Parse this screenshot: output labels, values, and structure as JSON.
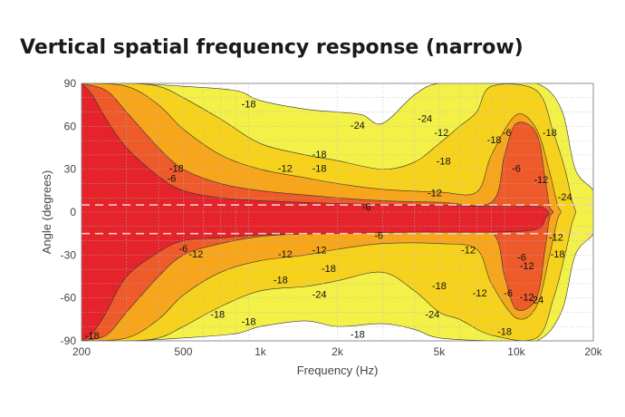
{
  "title": "Vertical spatial frequency response (narrow)",
  "colors": {
    "level_0": "#e5232b",
    "level_6": "#ee5a2a",
    "level_12": "#f7a51b",
    "level_18": "#f6d21c",
    "level_24": "#f3f048",
    "background": "#ffffff",
    "guide": "#f6c9c9"
  },
  "chart_data": {
    "type": "heatmap",
    "title": "Vertical spatial frequency response (narrow)",
    "xlabel": "Frequency (Hz)",
    "ylabel": "Angle (degrees)",
    "x_scale": "log",
    "xlim": [
      200,
      20000
    ],
    "ylim": [
      -90,
      90
    ],
    "x_ticks": [
      {
        "value": 200,
        "label": "200"
      },
      {
        "value": 500,
        "label": "500"
      },
      {
        "value": 1000,
        "label": "1k"
      },
      {
        "value": 2000,
        "label": "2k"
      },
      {
        "value": 5000,
        "label": "5k"
      },
      {
        "value": 10000,
        "label": "10k"
      },
      {
        "value": 20000,
        "label": "20k"
      }
    ],
    "y_ticks": [
      -90,
      -60,
      -30,
      0,
      30,
      60,
      90
    ],
    "grid": true,
    "contour_levels_db": [
      0,
      -6,
      -12,
      -18,
      -24
    ],
    "reference_lines_deg": [
      5,
      -15
    ],
    "regions": [
      {
        "level": -24,
        "upper": [
          [
            200,
            90
          ],
          [
            300,
            90
          ],
          [
            500,
            88
          ],
          [
            800,
            85
          ],
          [
            1000,
            78
          ],
          [
            1500,
            72
          ],
          [
            2000,
            70
          ],
          [
            2500,
            68
          ],
          [
            3000,
            62
          ],
          [
            4000,
            82
          ],
          [
            5000,
            90
          ],
          [
            8000,
            90
          ],
          [
            12000,
            90
          ],
          [
            15000,
            72
          ],
          [
            17000,
            30
          ],
          [
            20000,
            15
          ]
        ],
        "lower": [
          [
            200,
            -90
          ],
          [
            300,
            -90
          ],
          [
            500,
            -88
          ],
          [
            800,
            -85
          ],
          [
            1000,
            -80
          ],
          [
            1500,
            -76
          ],
          [
            2000,
            -80
          ],
          [
            3000,
            -78
          ],
          [
            4000,
            -82
          ],
          [
            5000,
            -88
          ],
          [
            8000,
            -90
          ],
          [
            12000,
            -90
          ],
          [
            15000,
            -70
          ],
          [
            17000,
            -30
          ],
          [
            20000,
            -15
          ]
        ]
      },
      {
        "level": -18,
        "upper": [
          [
            200,
            90
          ],
          [
            300,
            90
          ],
          [
            400,
            88
          ],
          [
            500,
            80
          ],
          [
            700,
            65
          ],
          [
            1000,
            48
          ],
          [
            1500,
            40
          ],
          [
            2000,
            36
          ],
          [
            3000,
            30
          ],
          [
            4000,
            35
          ],
          [
            5000,
            48
          ],
          [
            6000,
            60
          ],
          [
            7000,
            70
          ],
          [
            8000,
            88
          ],
          [
            12000,
            85
          ],
          [
            14000,
            55
          ],
          [
            15500,
            30
          ],
          [
            16500,
            8
          ]
        ],
        "lower": [
          [
            200,
            -90
          ],
          [
            300,
            -90
          ],
          [
            400,
            -88
          ],
          [
            500,
            -80
          ],
          [
            700,
            -66
          ],
          [
            1000,
            -55
          ],
          [
            1500,
            -52
          ],
          [
            2000,
            -48
          ],
          [
            3000,
            -42
          ],
          [
            4000,
            -55
          ],
          [
            5000,
            -70
          ],
          [
            6000,
            -75
          ],
          [
            8000,
            -86
          ],
          [
            12000,
            -88
          ],
          [
            14000,
            -60
          ],
          [
            15500,
            -30
          ],
          [
            16500,
            -8
          ]
        ]
      },
      {
        "level": -12,
        "upper": [
          [
            200,
            90
          ],
          [
            300,
            88
          ],
          [
            400,
            75
          ],
          [
            500,
            58
          ],
          [
            700,
            40
          ],
          [
            1000,
            30
          ],
          [
            1500,
            24
          ],
          [
            2000,
            20
          ],
          [
            3000,
            16
          ],
          [
            5000,
            14
          ],
          [
            7000,
            14
          ],
          [
            8000,
            40
          ],
          [
            10000,
            68
          ],
          [
            12000,
            58
          ],
          [
            13500,
            28
          ],
          [
            14500,
            5
          ]
        ],
        "lower": [
          [
            200,
            -90
          ],
          [
            300,
            -88
          ],
          [
            400,
            -75
          ],
          [
            500,
            -58
          ],
          [
            700,
            -42
          ],
          [
            1000,
            -34
          ],
          [
            1500,
            -30
          ],
          [
            2000,
            -26
          ],
          [
            3000,
            -22
          ],
          [
            5000,
            -22
          ],
          [
            7000,
            -26
          ],
          [
            8000,
            -50
          ],
          [
            10000,
            -74
          ],
          [
            12000,
            -66
          ],
          [
            13500,
            -30
          ],
          [
            14500,
            -5
          ]
        ]
      },
      {
        "level": -6,
        "upper": [
          [
            200,
            90
          ],
          [
            250,
            85
          ],
          [
            300,
            70
          ],
          [
            400,
            45
          ],
          [
            500,
            30
          ],
          [
            700,
            20
          ],
          [
            1000,
            15
          ],
          [
            1500,
            12
          ],
          [
            2000,
            10
          ],
          [
            3000,
            8
          ],
          [
            5000,
            7
          ],
          [
            8000,
            7
          ],
          [
            9000,
            40
          ],
          [
            10000,
            62
          ],
          [
            12000,
            55
          ],
          [
            13000,
            22
          ],
          [
            13500,
            4
          ]
        ],
        "lower": [
          [
            200,
            -90
          ],
          [
            250,
            -86
          ],
          [
            300,
            -70
          ],
          [
            400,
            -45
          ],
          [
            500,
            -30
          ],
          [
            700,
            -22
          ],
          [
            1000,
            -17
          ],
          [
            1500,
            -15
          ],
          [
            2000,
            -14
          ],
          [
            3000,
            -13
          ],
          [
            5000,
            -13
          ],
          [
            8000,
            -14
          ],
          [
            9000,
            -45
          ],
          [
            10000,
            -68
          ],
          [
            12000,
            -60
          ],
          [
            13000,
            -24
          ],
          [
            13500,
            -4
          ]
        ]
      },
      {
        "level": 0,
        "upper": [
          [
            200,
            90
          ],
          [
            220,
            82
          ],
          [
            250,
            65
          ],
          [
            300,
            45
          ],
          [
            400,
            25
          ],
          [
            500,
            15
          ],
          [
            700,
            10
          ],
          [
            1000,
            8
          ],
          [
            2000,
            6
          ],
          [
            4000,
            5
          ],
          [
            8000,
            4
          ],
          [
            12000,
            4
          ],
          [
            13000,
            2
          ]
        ],
        "lower": [
          [
            200,
            -90
          ],
          [
            220,
            -85
          ],
          [
            250,
            -70
          ],
          [
            300,
            -45
          ],
          [
            400,
            -28
          ],
          [
            500,
            -20
          ],
          [
            700,
            -18
          ],
          [
            1000,
            -16
          ],
          [
            2000,
            -15
          ],
          [
            4000,
            -14
          ],
          [
            8000,
            -14
          ],
          [
            12000,
            -12
          ],
          [
            13000,
            -4
          ]
        ]
      }
    ],
    "contour_labels": [
      {
        "text": "-18",
        "x": 900,
        "y": 75
      },
      {
        "text": "-18",
        "x": 470,
        "y": 30
      },
      {
        "text": "-18",
        "x": 1700,
        "y": 40
      },
      {
        "text": "-18",
        "x": 1700,
        "y": 30
      },
      {
        "text": "-12",
        "x": 1250,
        "y": 30
      },
      {
        "text": "-6",
        "x": 450,
        "y": 23
      },
      {
        "text": "-24",
        "x": 2400,
        "y": 60
      },
      {
        "text": "-24",
        "x": 4400,
        "y": 65
      },
      {
        "text": "-24",
        "x": 8000,
        "y": 92
      },
      {
        "text": "-12",
        "x": 5100,
        "y": 55
      },
      {
        "text": "-18",
        "x": 5200,
        "y": 35
      },
      {
        "text": "-18",
        "x": 8200,
        "y": 50
      },
      {
        "text": "-6",
        "x": 9200,
        "y": 55
      },
      {
        "text": "-18",
        "x": 13500,
        "y": 55
      },
      {
        "text": "-6",
        "x": 10000,
        "y": 30
      },
      {
        "text": "-12",
        "x": 12500,
        "y": 22
      },
      {
        "text": "-12",
        "x": 4800,
        "y": 13
      },
      {
        "text": "-24",
        "x": 15500,
        "y": 10
      },
      {
        "text": "-6",
        "x": 2600,
        "y": 3
      },
      {
        "text": "-6",
        "x": 2900,
        "y": -17
      },
      {
        "text": "-6",
        "x": 500,
        "y": -26
      },
      {
        "text": "-12",
        "x": 560,
        "y": -30
      },
      {
        "text": "-12",
        "x": 1250,
        "y": -30
      },
      {
        "text": "-12",
        "x": 1700,
        "y": -27
      },
      {
        "text": "-12",
        "x": 6500,
        "y": -27
      },
      {
        "text": "-18",
        "x": 1850,
        "y": -40
      },
      {
        "text": "-18",
        "x": 1200,
        "y": -48
      },
      {
        "text": "-24",
        "x": 1700,
        "y": -58
      },
      {
        "text": "-18",
        "x": 2400,
        "y": -86
      },
      {
        "text": "-18",
        "x": 680,
        "y": -72
      },
      {
        "text": "-18",
        "x": 900,
        "y": -77
      },
      {
        "text": "-18",
        "x": 5000,
        "y": -52
      },
      {
        "text": "-12",
        "x": 7200,
        "y": -57
      },
      {
        "text": "-6",
        "x": 9300,
        "y": -57
      },
      {
        "text": "-12",
        "x": 11000,
        "y": -60
      },
      {
        "text": "-24",
        "x": 4700,
        "y": -72
      },
      {
        "text": "-24",
        "x": 12000,
        "y": -62
      },
      {
        "text": "-18",
        "x": 9000,
        "y": -84
      },
      {
        "text": "-6",
        "x": 10500,
        "y": -32
      },
      {
        "text": "-12",
        "x": 11000,
        "y": -38
      },
      {
        "text": "-18",
        "x": 14500,
        "y": -30
      },
      {
        "text": "-12",
        "x": 14300,
        "y": -18
      },
      {
        "text": "-18",
        "x": 220,
        "y": -87
      }
    ]
  }
}
